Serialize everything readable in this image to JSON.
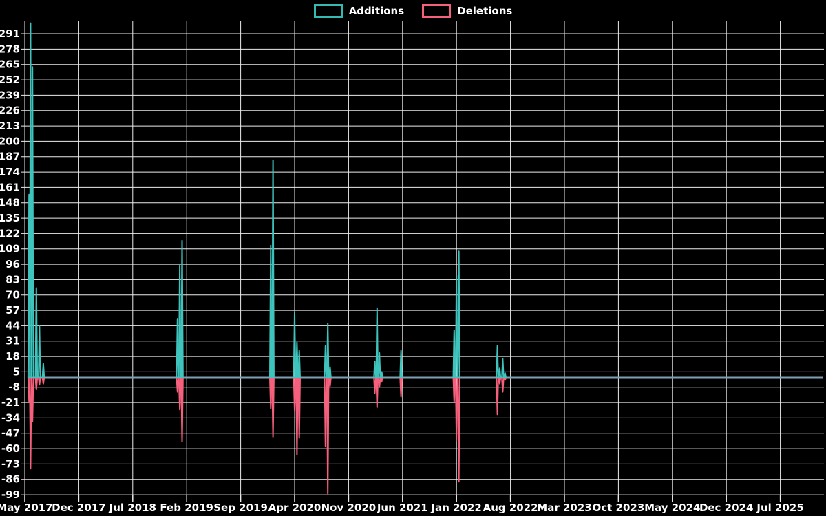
{
  "legend": {
    "items": [
      {
        "label": "Additions",
        "color": "#35b9b3"
      },
      {
        "label": "Deletions",
        "color": "#f5607d"
      }
    ]
  },
  "chart_data": {
    "type": "line",
    "title": "",
    "xlabel": "",
    "ylabel": "",
    "background_color": "#000000",
    "grid": true,
    "grid_color": "#ececec",
    "text_color": "#ffffff",
    "legend_position": "top-center",
    "x_tick_labels": [
      "May 2017",
      "Dec 2017",
      "Jul 2018",
      "Feb 2019",
      "Sep 2019",
      "Apr 2020",
      "Nov 2020",
      "Jun 2021",
      "Jan 2022",
      "Aug 2022",
      "Mar 2023",
      "Oct 2023",
      "May 2024",
      "Dec 2024",
      "Jul 2025"
    ],
    "x_tick_interval_months": 7,
    "y_tick_values": [
      291,
      278,
      265,
      252,
      239,
      226,
      213,
      200,
      187,
      174,
      161,
      148,
      135,
      122,
      109,
      96,
      83,
      70,
      57,
      44,
      31,
      18,
      5,
      -8,
      -21,
      -34,
      -47,
      -60,
      -73,
      -86,
      -99
    ],
    "ylim": [
      -99,
      291
    ],
    "y_step": 13,
    "series": [
      {
        "name": "Additions",
        "color": "#3fc3bd"
      },
      {
        "name": "Deletions",
        "color": "#f5607d"
      }
    ],
    "baseline_value": 0,
    "zero_line_color": "#7d9fb0",
    "baseline_range_months": {
      "start": 0.35,
      "end": 103.5
    },
    "events_note": "m = months after the May 2017 tick; weeks not listed are 0 additions / 0 deletions",
    "events": [
      {
        "m": 0.55,
        "additions": 155,
        "deletions": -20
      },
      {
        "m": 0.75,
        "additions": 300,
        "deletions": -77
      },
      {
        "m": 1.0,
        "additions": 263,
        "deletions": -37
      },
      {
        "m": 1.5,
        "additions": 76,
        "deletions": -10
      },
      {
        "m": 1.9,
        "additions": 44,
        "deletions": -6
      },
      {
        "m": 2.4,
        "additions": 12,
        "deletions": -5
      },
      {
        "m": 19.8,
        "additions": 50,
        "deletions": -12
      },
      {
        "m": 20.1,
        "additions": 95,
        "deletions": -27
      },
      {
        "m": 20.4,
        "additions": 116,
        "deletions": -54
      },
      {
        "m": 31.9,
        "additions": 112,
        "deletions": -26
      },
      {
        "m": 32.2,
        "additions": 184,
        "deletions": -50
      },
      {
        "m": 35.0,
        "additions": 55,
        "deletions": -28
      },
      {
        "m": 35.3,
        "additions": 30,
        "deletions": -65
      },
      {
        "m": 35.6,
        "additions": 23,
        "deletions": -51
      },
      {
        "m": 39.0,
        "additions": 27,
        "deletions": -58
      },
      {
        "m": 39.3,
        "additions": 46,
        "deletions": -98
      },
      {
        "m": 39.6,
        "additions": 9,
        "deletions": -7
      },
      {
        "m": 45.4,
        "additions": 14,
        "deletions": -13
      },
      {
        "m": 45.7,
        "additions": 59,
        "deletions": -25
      },
      {
        "m": 46.0,
        "additions": 21,
        "deletions": -8
      },
      {
        "m": 46.3,
        "additions": 5,
        "deletions": -3
      },
      {
        "m": 48.8,
        "additions": 23,
        "deletions": -16
      },
      {
        "m": 55.7,
        "additions": 40,
        "deletions": -20
      },
      {
        "m": 56.0,
        "additions": 87,
        "deletions": -53
      },
      {
        "m": 56.3,
        "additions": 107,
        "deletions": -88
      },
      {
        "m": 61.3,
        "additions": 27,
        "deletions": -31
      },
      {
        "m": 61.6,
        "additions": 8,
        "deletions": -5
      },
      {
        "m": 62.0,
        "additions": 16,
        "deletions": -12
      },
      {
        "m": 62.3,
        "additions": 4,
        "deletions": -2
      }
    ]
  }
}
